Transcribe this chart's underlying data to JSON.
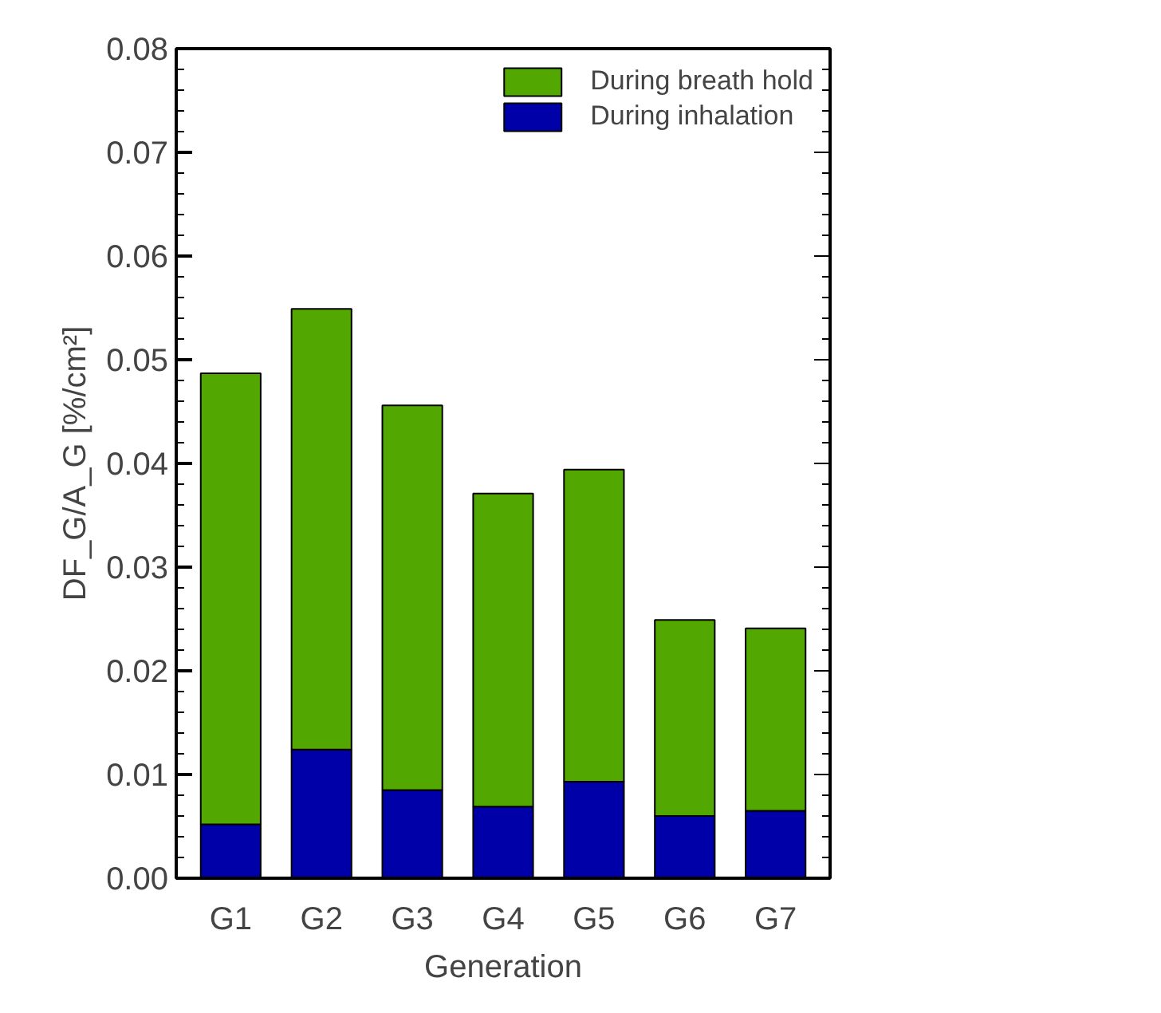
{
  "chart_data": {
    "type": "bar",
    "stacked": true,
    "xlabel": "Generation",
    "ylabel": "DF_G/A_G [%/cm²]",
    "categories": [
      "G1",
      "G2",
      "G3",
      "G4",
      "G5",
      "G6",
      "G7"
    ],
    "series": [
      {
        "name": "During inhalation",
        "color": "#0000a8",
        "values": [
          0.0052,
          0.0124,
          0.0085,
          0.0069,
          0.0093,
          0.006,
          0.0065
        ]
      },
      {
        "name": "During breath hold",
        "color": "#52a800",
        "values": [
          0.0435,
          0.0425,
          0.0371,
          0.0302,
          0.0301,
          0.0189,
          0.0176
        ]
      }
    ],
    "ylim": [
      0,
      0.08
    ],
    "yticks": [
      {
        "value": 0,
        "label": "0.00"
      },
      0.01,
      0.02,
      0.03,
      0.04,
      0.05,
      0.06,
      0.07,
      0.08
    ],
    "grid": false,
    "legend": "top right"
  }
}
